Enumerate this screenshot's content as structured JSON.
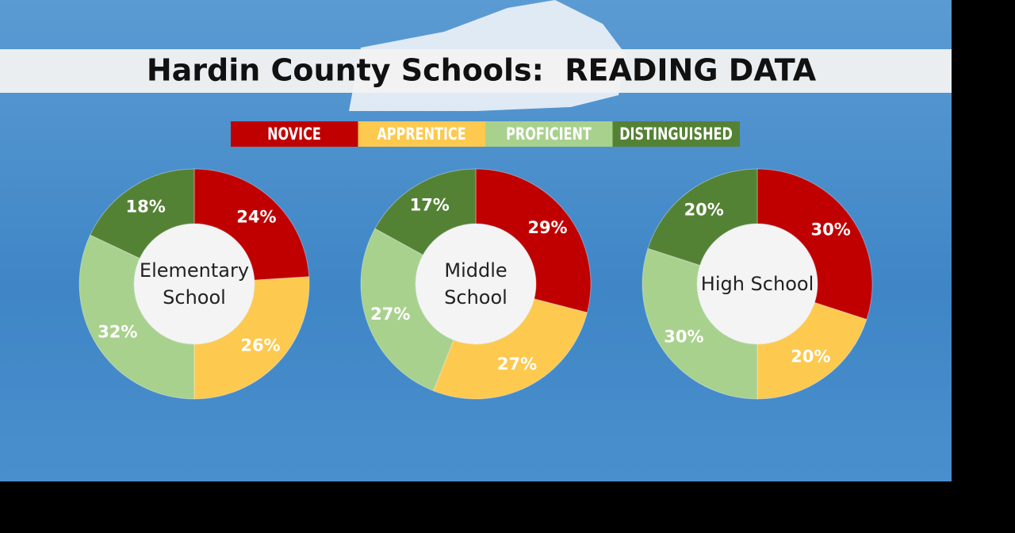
{
  "title": "Hardin County Schools:  READING DATA",
  "legend": {
    "categories": [
      "NOVICE",
      "APPRENTICE",
      "PROFICIENT",
      "DISTINGUISHED"
    ],
    "colors": [
      "#c00000",
      "#fdc94f",
      "#a9d18e",
      "#548235"
    ]
  },
  "chart_data": [
    {
      "type": "donut",
      "center_label": "Elementary School",
      "values": [
        24,
        26,
        32,
        18
      ],
      "value_labels": [
        "24%",
        "26%",
        "32%",
        "18%"
      ]
    },
    {
      "type": "donut",
      "center_label": "Middle School",
      "values": [
        29,
        27,
        27,
        17
      ],
      "value_labels": [
        "29%",
        "27%",
        "27%",
        "17%"
      ]
    },
    {
      "type": "donut",
      "center_label": "High School",
      "values": [
        30,
        20,
        30,
        20
      ],
      "value_labels": [
        "30%",
        "20%",
        "30%",
        "20%"
      ]
    }
  ]
}
